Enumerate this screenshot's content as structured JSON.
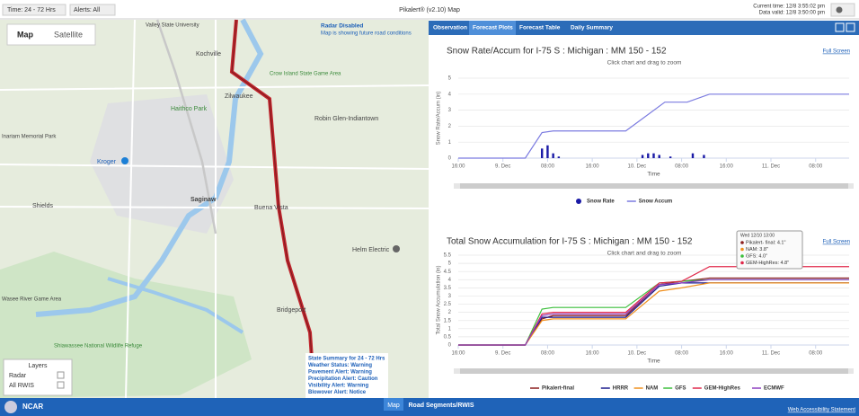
{
  "toolbar": {
    "time_filter": "Time: 24 - 72 Hrs",
    "alerts_filter": "Alerts: All",
    "app_title": "Pikalert® (v2.10) Map",
    "current_time": "Current time: 12/8 3:55:02 pm",
    "data_valid": "Data valid: 12/8 3:50:00 pm"
  },
  "map": {
    "view_buttons": [
      "Map",
      "Satellite"
    ],
    "radar_notice": {
      "title": "Radar Disabled",
      "text": "Map is showing future road conditions"
    },
    "labels": [
      "Kochville",
      "Zilwaukee",
      "Crow Island State Game Area",
      "Haithco Park",
      "Robin Glen-Indiantown",
      "Kroger",
      "Saginaw",
      "Buena Vista",
      "Shields",
      "Helm Electric",
      "Bridgeport",
      "Shiawassee National Wildlife Refuge",
      "Valley State University",
      "Inariam Memorial Park",
      "Wasee River Game Area"
    ],
    "layers": {
      "title": "Layers",
      "items": [
        "Radar",
        "All RWIS"
      ]
    },
    "state_summary": [
      "State Summary for 24 - 72 Hrs",
      "Weather Status: Warning",
      "Pavement Alert: Warning",
      "Precipitation Alert: Caution",
      "Visibility Alert: Warning",
      "Blowover Alert: Notice"
    ]
  },
  "tabs": [
    "Observation",
    "Forecast Plots",
    "Forecast Table",
    "Daily Summary"
  ],
  "active_tab": 1,
  "plots": [
    {
      "title": "Snow Rate/Accum for I-75 S : Michigan : MM 150 - 152",
      "subtitle": "Click chart and drag to zoom",
      "full_screen": "Full Screen",
      "y_axis_label": "Snow Rate/Accum (in)",
      "x_axis_label": "Time",
      "xlim": [
        0,
        70
      ],
      "ylim": [
        0,
        5
      ],
      "yticks": [
        0,
        1,
        2,
        3,
        4,
        5
      ],
      "xticks": [
        {
          "value": 0,
          "label": "16:00"
        },
        {
          "value": 8,
          "label": "9. Dec"
        },
        {
          "value": 16,
          "label": "08:00"
        },
        {
          "value": 24,
          "label": "16:00"
        },
        {
          "value": 32,
          "label": "10. Dec"
        },
        {
          "value": 40,
          "label": "08:00"
        },
        {
          "value": 48,
          "label": "16:00"
        },
        {
          "value": 56,
          "label": "11. Dec"
        },
        {
          "value": 64,
          "label": "08:00"
        }
      ],
      "series": [
        {
          "name": "Snow Rate",
          "color": "#1a1aa6",
          "type": "column",
          "x": [
            15,
            16,
            17,
            18,
            33,
            34,
            35,
            36,
            38,
            42,
            44
          ],
          "values": [
            0.6,
            0.8,
            0.3,
            0.1,
            0.2,
            0.3,
            0.3,
            0.2,
            0.1,
            0.3,
            0.2
          ]
        },
        {
          "name": "Snow Accum",
          "color": "#7b7be0",
          "type": "line",
          "x": [
            0,
            12,
            15,
            17,
            30,
            37,
            41,
            45,
            70
          ],
          "values": [
            0,
            0,
            1.6,
            1.7,
            1.7,
            3.5,
            3.5,
            4.0,
            4.0
          ]
        }
      ]
    },
    {
      "title": "Total Snow Accumulation for I-75 S : Michigan : MM 150 - 152",
      "subtitle": "Click chart and drag to zoom",
      "full_screen": "Full Screen",
      "y_axis_label": "Total Snow Accumulation (in)",
      "x_axis_label": "Time",
      "xlim": [
        0,
        70
      ],
      "ylim": [
        0,
        5.5
      ],
      "yticks": [
        0,
        0.5,
        1,
        1.5,
        2,
        2.5,
        3,
        3.5,
        4,
        4.5,
        5,
        5.5
      ],
      "xticks": [
        {
          "value": 0,
          "label": "16:00"
        },
        {
          "value": 8,
          "label": "9. Dec"
        },
        {
          "value": 16,
          "label": "08:00"
        },
        {
          "value": 24,
          "label": "16:00"
        },
        {
          "value": 32,
          "label": "10. Dec"
        },
        {
          "value": 40,
          "label": "08:00"
        },
        {
          "value": 48,
          "label": "16:00"
        },
        {
          "value": 56,
          "label": "11. Dec"
        },
        {
          "value": 64,
          "label": "08:00"
        }
      ],
      "series": [
        {
          "name": "Pikalert-final",
          "color": "#8b1c1c",
          "type": "line",
          "x": [
            0,
            12,
            15,
            17,
            30,
            36,
            40,
            45,
            70
          ],
          "values": [
            0,
            0,
            1.6,
            1.8,
            1.8,
            3.7,
            3.9,
            4.1,
            4.1
          ]
        },
        {
          "name": "HRRR",
          "color": "#1a1a8c",
          "type": "line",
          "x": [
            0,
            12,
            15,
            17,
            30,
            36,
            40,
            45,
            70
          ],
          "values": [
            0,
            0,
            1.7,
            1.7,
            1.7,
            3.6,
            3.8,
            3.8,
            3.8
          ]
        },
        {
          "name": "NAM",
          "color": "#f0901e",
          "type": "line",
          "x": [
            0,
            12,
            15,
            17,
            30,
            36,
            40,
            45,
            70
          ],
          "values": [
            0,
            0,
            1.5,
            1.6,
            1.6,
            3.3,
            3.5,
            3.8,
            3.8
          ]
        },
        {
          "name": "GFS",
          "color": "#3cbf3c",
          "type": "line",
          "x": [
            0,
            12,
            15,
            17,
            30,
            36,
            40,
            45,
            70
          ],
          "values": [
            0,
            0,
            2.2,
            2.3,
            2.3,
            3.8,
            3.9,
            4.0,
            4.0
          ]
        },
        {
          "name": "GEM-HighRes",
          "color": "#e0284a",
          "type": "line",
          "x": [
            0,
            12,
            15,
            17,
            30,
            36,
            40,
            45,
            70
          ],
          "values": [
            0,
            0,
            1.9,
            2.0,
            2.0,
            3.8,
            3.9,
            4.8,
            4.8
          ]
        },
        {
          "name": "ECMWF",
          "color": "#8e3fc0",
          "type": "line",
          "x": [
            0,
            12,
            15,
            17,
            30,
            36,
            40,
            45,
            70
          ],
          "values": [
            0,
            0,
            1.8,
            1.9,
            1.9,
            3.7,
            3.8,
            4.0,
            4.0
          ]
        }
      ],
      "tooltip": {
        "header": "Wed 12/10 13:00",
        "lines": [
          "Pikalert- final: 4.1\"",
          "NAM: 3.8\"",
          "GFS: 4.0\"",
          "GEM-HighRes: 4.8\""
        ]
      }
    }
  ],
  "footer": {
    "org": "NCAR",
    "tabs": [
      "Map",
      "Road Segments/RWIS"
    ],
    "link": "Web Accessibility Statement"
  }
}
